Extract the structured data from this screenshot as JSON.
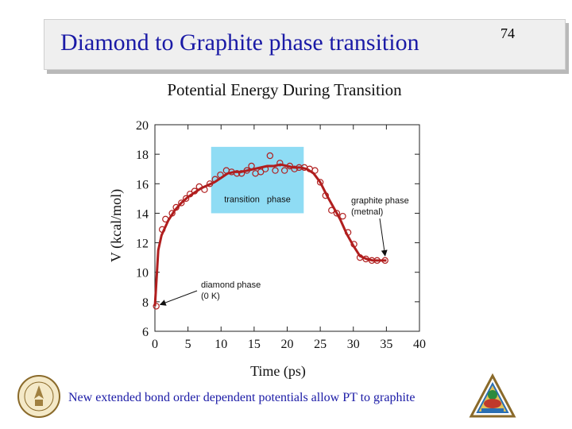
{
  "slide": {
    "title": "Diamond to Graphite phase transition",
    "number": "74",
    "footer": "New extended bond order dependent potentials allow PT to graphite"
  },
  "chart_data": {
    "type": "scatter",
    "title": "Potential Energy During Transition",
    "xlabel": "Time (ps)",
    "ylabel": "V (kcal/mol)",
    "xlim": [
      0,
      40
    ],
    "ylim": [
      6,
      20
    ],
    "xticks": [
      0,
      5,
      10,
      15,
      20,
      25,
      30,
      35,
      40
    ],
    "yticks": [
      6,
      8,
      10,
      12,
      14,
      16,
      18,
      20
    ],
    "grid": false,
    "colors": {
      "curve": "#b01e1e",
      "points": "#b01e1e",
      "region": "#8fdcf4"
    },
    "region": {
      "label": "transition phase",
      "x": [
        8.5,
        22.5
      ],
      "y": [
        14,
        18.5
      ]
    },
    "annotations": [
      {
        "text": [
          "diamond phase",
          "(0 K)"
        ],
        "target": [
          0.2,
          7.7
        ]
      },
      {
        "text": [
          "graphite phase",
          "(metnal)"
        ],
        "target": [
          34.8,
          10.8
        ]
      }
    ],
    "series": [
      {
        "kind": "points",
        "x": [
          0.2,
          1.1,
          1.6,
          2.6,
          3.2,
          4.0,
          4.7,
          5.3,
          6.0,
          6.7,
          7.5,
          8.3,
          9.1,
          9.9,
          10.8,
          11.6,
          12.4,
          13.1,
          13.9,
          14.6,
          15.2,
          16.0,
          16.7,
          17.4,
          18.2,
          18.9,
          19.6,
          20.4,
          21.1,
          21.8,
          22.6,
          23.4,
          24.2,
          25.0,
          25.8,
          26.7,
          27.5,
          28.4,
          29.2,
          30.1,
          31.0,
          31.9,
          32.8,
          33.6,
          34.8
        ],
        "y": [
          7.7,
          12.9,
          13.6,
          14.0,
          14.4,
          14.7,
          15.0,
          15.3,
          15.5,
          15.8,
          15.6,
          16.0,
          16.3,
          16.6,
          16.9,
          16.8,
          16.7,
          16.7,
          16.9,
          17.2,
          16.7,
          16.8,
          17.0,
          17.9,
          16.9,
          17.4,
          16.9,
          17.2,
          17.0,
          17.1,
          17.1,
          17.0,
          16.9,
          16.1,
          15.2,
          14.2,
          14.0,
          13.8,
          12.7,
          11.9,
          11.0,
          10.9,
          10.8,
          10.8,
          10.8
        ]
      },
      {
        "kind": "fit",
        "x": [
          0,
          0.5,
          1,
          2,
          3,
          4,
          5,
          6,
          7,
          8,
          9,
          10,
          11,
          12,
          13,
          14,
          15,
          16,
          17,
          18,
          19,
          20,
          21,
          22,
          23,
          24,
          25,
          26,
          27,
          28,
          29,
          30,
          31,
          32,
          33,
          34,
          35
        ],
        "y": [
          7.7,
          11.5,
          12.5,
          13.5,
          14.2,
          14.7,
          15.1,
          15.4,
          15.7,
          15.9,
          16.1,
          16.4,
          16.7,
          16.8,
          16.8,
          16.9,
          17.0,
          17.1,
          17.2,
          17.2,
          17.3,
          17.2,
          17.1,
          17.1,
          17.0,
          16.7,
          16.1,
          15.2,
          14.4,
          13.6,
          12.6,
          11.8,
          11.1,
          10.9,
          10.8,
          10.8,
          10.8
        ]
      }
    ]
  }
}
